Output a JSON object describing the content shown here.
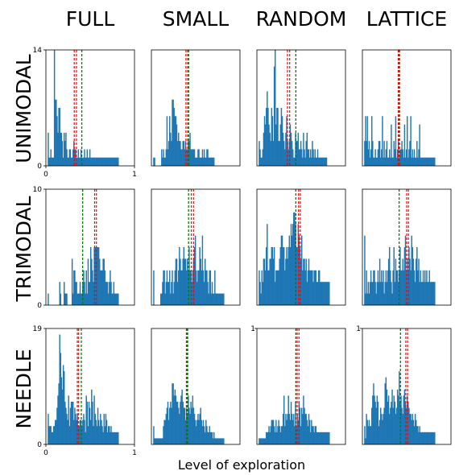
{
  "figure": {
    "columns": [
      "FULL",
      "SMALL",
      "RANDOM",
      "LATTICE"
    ],
    "rows": [
      "UNIMODAL",
      "TRIMODAL",
      "NEEDLE"
    ],
    "xlabel": "Level of exploration",
    "colors": {
      "bar": "#1f77b4",
      "mean_line": "#ff0000",
      "reference_line": "#008000"
    }
  },
  "chart_data": [
    {
      "type": "bar",
      "row": "UNIMODAL",
      "column": "FULL",
      "xlim": [
        0,
        1
      ],
      "ylim": [
        0,
        14
      ],
      "xticks": [
        "0",
        "1"
      ],
      "yticks": [
        "0",
        "14"
      ],
      "bin_start": 0.02,
      "bin_width": 0.01,
      "values": [
        4,
        1,
        1,
        2,
        1,
        1,
        1,
        14,
        8,
        8,
        6,
        4,
        7,
        7,
        4,
        4,
        3,
        1,
        4,
        3,
        4,
        2,
        1,
        1,
        2,
        2,
        1,
        1,
        2,
        3,
        2,
        2,
        1,
        1,
        2,
        1,
        1,
        2,
        1,
        1,
        1,
        2,
        1,
        1,
        2,
        1,
        1,
        2,
        1,
        1,
        1,
        1,
        1,
        1,
        1,
        1,
        1,
        1,
        1,
        1,
        1,
        1,
        1,
        1,
        1,
        1,
        1,
        1,
        1,
        1,
        1,
        1,
        1,
        1,
        1,
        1,
        1,
        1,
        1,
        1
      ],
      "red_lines": [
        0.32,
        0.345
      ],
      "green_line": 0.405
    },
    {
      "type": "bar",
      "row": "UNIMODAL",
      "column": "SMALL",
      "xlim": [
        0,
        1
      ],
      "ylim": [
        0,
        14
      ],
      "xticks": [],
      "yticks": [],
      "bin_start": 0.02,
      "bin_width": 0.01,
      "values": [
        1,
        1,
        0,
        0,
        0,
        0,
        0,
        0,
        0,
        2,
        1,
        2,
        1,
        1,
        2,
        6,
        2,
        3,
        6,
        4,
        3,
        8,
        8,
        7,
        6,
        6,
        5,
        3,
        4,
        3,
        3,
        2,
        2,
        3,
        3,
        2,
        3,
        2,
        2,
        3,
        3,
        4,
        2,
        2,
        2,
        2,
        2,
        1,
        1,
        1,
        2,
        2,
        1,
        1,
        1,
        2,
        1,
        2,
        1,
        1,
        2,
        2,
        1,
        1,
        1,
        1,
        1,
        1,
        1
      ],
      "red_lines": [
        0.39,
        0.41
      ],
      "green_line": 0.42
    },
    {
      "type": "bar",
      "row": "UNIMODAL",
      "column": "RANDOM",
      "xlim": [
        0,
        1
      ],
      "ylim": [
        0,
        14
      ],
      "xticks": [],
      "yticks": [],
      "bin_start": 0.02,
      "bin_width": 0.01,
      "values": [
        3,
        2,
        1,
        1,
        2,
        4,
        6,
        5,
        7,
        9,
        7,
        5,
        4,
        3,
        7,
        6,
        3,
        12,
        14,
        5,
        7,
        7,
        3,
        3,
        5,
        7,
        6,
        4,
        3,
        2,
        4,
        6,
        3,
        2,
        3,
        5,
        4,
        3,
        2,
        1,
        1,
        4,
        3,
        3,
        4,
        2,
        2,
        3,
        2,
        1,
        4,
        2,
        1,
        3,
        4,
        2,
        2,
        1,
        2,
        1,
        3,
        2,
        1,
        2,
        1,
        1,
        2,
        1,
        1,
        1,
        1,
        1,
        1,
        1,
        1,
        1,
        1
      ],
      "red_lines": [
        0.345,
        0.37
      ],
      "green_line": 0.44
    },
    {
      "type": "bar",
      "row": "UNIMODAL",
      "column": "LATTICE",
      "xlim": [
        0,
        1
      ],
      "ylim": [
        0,
        14
      ],
      "xticks": [],
      "yticks": [],
      "bin_start": 0.02,
      "bin_width": 0.01,
      "values": [
        3,
        6,
        3,
        6,
        2,
        3,
        1,
        2,
        6,
        3,
        1,
        1,
        2,
        1,
        1,
        2,
        3,
        3,
        1,
        2,
        6,
        1,
        3,
        1,
        2,
        3,
        1,
        1,
        2,
        1,
        5,
        1,
        1,
        3,
        2,
        6,
        1,
        2,
        3,
        1,
        2,
        2,
        3,
        2,
        1,
        5,
        1,
        2,
        6,
        1,
        2,
        3,
        6,
        1,
        2,
        1,
        2,
        1,
        1,
        3,
        1,
        2,
        5,
        1,
        1,
        1,
        1,
        1,
        1,
        1,
        1,
        1,
        1,
        1,
        1,
        1,
        1,
        1,
        1,
        1
      ],
      "red_lines": [
        0.405,
        0.42
      ],
      "green_line": 0.415
    },
    {
      "type": "bar",
      "row": "TRIMODAL",
      "column": "FULL",
      "xlim": [
        0,
        1
      ],
      "ylim": [
        0,
        10
      ],
      "xticks": [],
      "yticks": [
        "0",
        "10"
      ],
      "bin_start": 0.02,
      "bin_width": 0.01,
      "values": [
        1,
        0,
        0,
        0,
        0,
        0,
        0,
        0,
        0,
        0,
        0,
        0,
        0,
        2,
        1,
        0,
        0,
        0,
        2,
        1,
        1,
        1,
        0,
        0,
        0,
        0,
        0,
        4,
        1,
        3,
        3,
        2,
        2,
        1,
        1,
        1,
        2,
        1,
        1,
        2,
        3,
        2,
        1,
        3,
        1,
        4,
        2,
        2,
        5,
        4,
        3,
        2,
        5,
        5,
        5,
        5,
        5,
        5,
        4,
        3,
        3,
        3,
        4,
        4,
        3,
        2,
        2,
        2,
        1,
        2,
        3,
        2,
        1,
        1,
        2,
        1,
        1,
        1,
        1,
        1
      ],
      "red_lines": [
        0.55,
        0.57
      ],
      "green_line": 0.415
    },
    {
      "type": "bar",
      "row": "TRIMODAL",
      "column": "SMALL",
      "xlim": [
        0,
        1
      ],
      "ylim": [
        0,
        10
      ],
      "xticks": [],
      "yticks": [],
      "bin_start": 0.02,
      "bin_width": 0.01,
      "values": [
        3,
        0,
        0,
        0,
        0,
        0,
        0,
        0,
        1,
        1,
        2,
        3,
        3,
        1,
        2,
        3,
        2,
        2,
        3,
        1,
        2,
        3,
        1,
        2,
        3,
        4,
        4,
        2,
        3,
        5,
        4,
        3,
        3,
        4,
        5,
        4,
        4,
        3,
        4,
        3,
        5,
        3,
        3,
        2,
        3,
        4,
        5,
        6,
        3,
        2,
        3,
        3,
        5,
        4,
        3,
        6,
        3,
        2,
        4,
        3,
        3,
        2,
        1,
        3,
        3,
        1,
        2,
        1,
        1,
        3,
        1,
        1,
        1,
        1,
        1,
        1,
        1,
        1,
        1,
        1
      ],
      "red_lines": [
        0.45,
        0.475
      ],
      "green_line": 0.42
    },
    {
      "type": "bar",
      "row": "TRIMODAL",
      "column": "RANDOM",
      "xlim": [
        0,
        1
      ],
      "ylim": [
        0,
        10
      ],
      "xticks": [],
      "yticks": [],
      "bin_start": 0.02,
      "bin_width": 0.01,
      "values": [
        3,
        2,
        1,
        3,
        2,
        4,
        4,
        3,
        5,
        7,
        3,
        3,
        4,
        4,
        5,
        5,
        4,
        5,
        2,
        3,
        3,
        3,
        3,
        4,
        5,
        6,
        6,
        5,
        5,
        3,
        4,
        5,
        4,
        5,
        6,
        5,
        7,
        6,
        7,
        8,
        8,
        7,
        5,
        5,
        7,
        6,
        5,
        4,
        6,
        3,
        4,
        4,
        3,
        4,
        2,
        3,
        4,
        3,
        3,
        3,
        3,
        2,
        3,
        3,
        3,
        2,
        2,
        3,
        3,
        2,
        2,
        2,
        2,
        2,
        2,
        2,
        2,
        2,
        2,
        2
      ],
      "red_lines": [
        0.47,
        0.49
      ],
      "green_line": 0.44
    },
    {
      "type": "bar",
      "row": "TRIMODAL",
      "column": "LATTICE",
      "xlim": [
        0,
        1
      ],
      "ylim": [
        0,
        10
      ],
      "xticks": [],
      "yticks": [],
      "bin_start": 0.02,
      "bin_width": 0.01,
      "values": [
        6,
        1,
        3,
        1,
        2,
        1,
        2,
        3,
        2,
        2,
        3,
        3,
        2,
        1,
        2,
        3,
        2,
        4,
        2,
        3,
        2,
        3,
        1,
        2,
        3,
        2,
        3,
        4,
        5,
        3,
        2,
        1,
        3,
        5,
        2,
        4,
        3,
        3,
        2,
        3,
        5,
        3,
        3,
        4,
        3,
        5,
        6,
        3,
        4,
        3,
        5,
        4,
        3,
        6,
        5,
        4,
        3,
        2,
        4,
        5,
        3,
        4,
        2,
        3,
        2,
        2,
        3,
        2,
        3,
        2,
        3,
        2,
        2,
        3,
        2,
        2,
        2,
        2,
        2,
        2
      ],
      "red_lines": [
        0.5,
        0.52
      ],
      "green_line": 0.415
    },
    {
      "type": "bar",
      "row": "NEEDLE",
      "column": "FULL",
      "xlim": [
        0,
        1
      ],
      "ylim": [
        0,
        19
      ],
      "xticks": [
        "0",
        "1"
      ],
      "yticks": [
        "0",
        "19"
      ],
      "bin_start": 0.02,
      "bin_width": 0.01,
      "values": [
        5,
        3,
        3,
        3,
        2,
        2,
        3,
        3,
        4,
        4,
        6,
        8,
        10,
        18,
        15,
        11,
        9,
        13,
        12,
        7,
        6,
        5,
        4,
        8,
        3,
        6,
        7,
        7,
        7,
        4,
        6,
        5,
        4,
        5,
        3,
        3,
        4,
        4,
        3,
        4,
        5,
        4,
        2,
        8,
        7,
        3,
        7,
        6,
        4,
        9,
        7,
        3,
        8,
        5,
        4,
        3,
        6,
        4,
        3,
        5,
        4,
        3,
        2,
        5,
        3,
        5,
        4,
        2,
        3,
        3,
        2,
        3,
        2,
        2,
        2,
        2,
        2,
        2,
        2,
        2
      ],
      "red_lines": [
        0.355,
        0.37
      ],
      "green_line": 0.4
    },
    {
      "type": "bar",
      "row": "NEEDLE",
      "column": "SMALL",
      "xlim": [
        0,
        1
      ],
      "ylim": [
        0,
        19
      ],
      "xticks": [],
      "yticks": [],
      "bin_start": 0.02,
      "bin_width": 0.01,
      "values": [
        3,
        1,
        1,
        1,
        1,
        1,
        1,
        1,
        1,
        1,
        1,
        3,
        4,
        4,
        5,
        6,
        7,
        4,
        6,
        7,
        6,
        10,
        10,
        8,
        9,
        8,
        7,
        7,
        6,
        5,
        7,
        8,
        9,
        7,
        6,
        6,
        4,
        6,
        5,
        8,
        6,
        5,
        7,
        6,
        8,
        6,
        5,
        4,
        3,
        4,
        5,
        4,
        5,
        6,
        4,
        3,
        4,
        3,
        2,
        4,
        3,
        2,
        2,
        3,
        2,
        2,
        2,
        1,
        2,
        1,
        1,
        1,
        1,
        1,
        1,
        1,
        1,
        1,
        1,
        1
      ],
      "red_lines": [
        0.395,
        0.41
      ],
      "green_line": 0.405
    },
    {
      "type": "bar",
      "row": "NEEDLE",
      "column": "RANDOM",
      "xlim": [
        0,
        1
      ],
      "ylim": [
        0,
        19
      ],
      "xticks": [],
      "yticks": [
        "1"
      ],
      "bin_start": 0.02,
      "bin_width": 0.01,
      "values": [
        1,
        1,
        1,
        1,
        1,
        1,
        1,
        1,
        2,
        2,
        2,
        3,
        2,
        3,
        4,
        4,
        4,
        3,
        2,
        4,
        2,
        3,
        4,
        3,
        2,
        3,
        3,
        5,
        8,
        3,
        5,
        4,
        5,
        8,
        5,
        4,
        7,
        5,
        4,
        5,
        3,
        7,
        3,
        5,
        4,
        7,
        6,
        3,
        6,
        5,
        8,
        6,
        5,
        5,
        4,
        3,
        5,
        4,
        2,
        4,
        3,
        3,
        2,
        3,
        3,
        2,
        2,
        2,
        2,
        2,
        2,
        2,
        2,
        2,
        2,
        2,
        2,
        2,
        2,
        2
      ],
      "red_lines": [
        0.455,
        0.475
      ],
      "green_line": 0.44
    },
    {
      "type": "bar",
      "row": "NEEDLE",
      "column": "LATTICE",
      "xlim": [
        0,
        1
      ],
      "ylim": [
        0,
        19
      ],
      "xticks": [],
      "yticks": [
        "1"
      ],
      "bin_start": 0.02,
      "bin_width": 0.01,
      "values": [
        3,
        1,
        5,
        4,
        3,
        4,
        3,
        3,
        6,
        8,
        10,
        8,
        7,
        6,
        8,
        7,
        3,
        4,
        6,
        5,
        4,
        5,
        6,
        10,
        11,
        9,
        7,
        8,
        5,
        6,
        7,
        9,
        6,
        8,
        7,
        5,
        6,
        9,
        8,
        12,
        7,
        8,
        6,
        5,
        8,
        9,
        7,
        6,
        8,
        7,
        6,
        5,
        5,
        4,
        5,
        4,
        3,
        5,
        4,
        3,
        3,
        2,
        3,
        2,
        2,
        2,
        2,
        2,
        2,
        2,
        2,
        2,
        2,
        2,
        2,
        2,
        2,
        2,
        2,
        2
      ],
      "red_lines": [
        0.49,
        0.51
      ],
      "green_line": 0.43
    }
  ]
}
